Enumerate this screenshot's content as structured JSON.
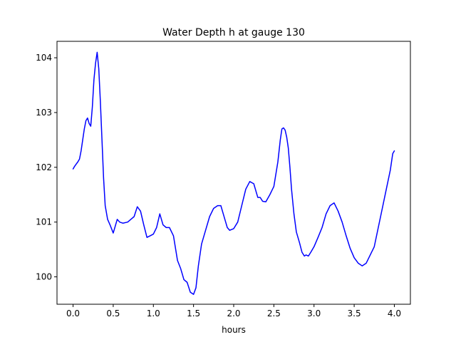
{
  "chart_data": {
    "type": "line",
    "title": "Water Depth h at gauge 130",
    "xlabel": "hours",
    "ylabel": "",
    "xlim": [
      -0.2,
      4.2
    ],
    "ylim": [
      99.5,
      104.3
    ],
    "grid": false,
    "x_ticks": [
      0.0,
      0.5,
      1.0,
      1.5,
      2.0,
      2.5,
      3.0,
      3.5,
      4.0
    ],
    "x_tick_labels": [
      "0.0",
      "0.5",
      "1.0",
      "1.5",
      "2.0",
      "2.5",
      "3.0",
      "3.5",
      "4.0"
    ],
    "y_ticks": [
      100,
      101,
      102,
      103,
      104
    ],
    "y_tick_labels": [
      "100",
      "101",
      "102",
      "103",
      "104"
    ],
    "series": [
      {
        "name": "h",
        "color": "#0000ff",
        "x": [
          0.0,
          0.02,
          0.04,
          0.06,
          0.08,
          0.1,
          0.12,
          0.14,
          0.16,
          0.18,
          0.2,
          0.22,
          0.24,
          0.26,
          0.28,
          0.3,
          0.32,
          0.34,
          0.36,
          0.38,
          0.4,
          0.43,
          0.46,
          0.5,
          0.55,
          0.58,
          0.62,
          0.68,
          0.72,
          0.76,
          0.8,
          0.84,
          0.88,
          0.92,
          0.96,
          1.0,
          1.04,
          1.08,
          1.12,
          1.16,
          1.2,
          1.25,
          1.3,
          1.34,
          1.38,
          1.42,
          1.46,
          1.5,
          1.53,
          1.56,
          1.6,
          1.65,
          1.7,
          1.75,
          1.8,
          1.84,
          1.87,
          1.9,
          1.92,
          1.95,
          2.0,
          2.05,
          2.1,
          2.15,
          2.2,
          2.25,
          2.28,
          2.3,
          2.33,
          2.36,
          2.4,
          2.45,
          2.5,
          2.55,
          2.58,
          2.6,
          2.62,
          2.64,
          2.66,
          2.68,
          2.7,
          2.72,
          2.75,
          2.78,
          2.8,
          2.82,
          2.85,
          2.88,
          2.9,
          2.93,
          2.96,
          3.0,
          3.05,
          3.1,
          3.15,
          3.2,
          3.25,
          3.3,
          3.35,
          3.4,
          3.45,
          3.5,
          3.55,
          3.6,
          3.65,
          3.7,
          3.75,
          3.8,
          3.85,
          3.9,
          3.95,
          3.98,
          4.0
        ],
        "values": [
          101.97,
          102.02,
          102.06,
          102.1,
          102.15,
          102.3,
          102.5,
          102.7,
          102.85,
          102.9,
          102.8,
          102.75,
          103.1,
          103.6,
          103.9,
          104.1,
          103.8,
          103.2,
          102.5,
          101.8,
          101.3,
          101.05,
          100.95,
          100.8,
          101.05,
          101.0,
          100.98,
          101.0,
          101.05,
          101.1,
          101.28,
          101.2,
          100.95,
          100.72,
          100.75,
          100.78,
          100.9,
          101.15,
          100.95,
          100.9,
          100.9,
          100.75,
          100.3,
          100.15,
          99.95,
          99.9,
          99.72,
          99.68,
          99.8,
          100.2,
          100.6,
          100.85,
          101.1,
          101.25,
          101.3,
          101.3,
          101.15,
          101.0,
          100.9,
          100.85,
          100.88,
          101.0,
          101.3,
          101.6,
          101.74,
          101.7,
          101.55,
          101.45,
          101.45,
          101.38,
          101.37,
          101.5,
          101.65,
          102.1,
          102.5,
          102.7,
          102.72,
          102.68,
          102.55,
          102.35,
          102.0,
          101.6,
          101.15,
          100.82,
          100.72,
          100.62,
          100.45,
          100.38,
          100.4,
          100.38,
          100.45,
          100.55,
          100.72,
          100.9,
          101.15,
          101.3,
          101.35,
          101.2,
          101.0,
          100.75,
          100.52,
          100.35,
          100.25,
          100.2,
          100.25,
          100.4,
          100.55,
          100.9,
          101.25,
          101.6,
          101.95,
          102.25,
          102.3
        ]
      }
    ]
  }
}
